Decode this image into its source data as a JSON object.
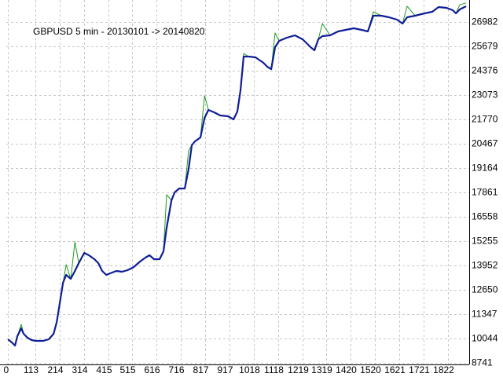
{
  "chart_data": {
    "type": "line",
    "annotation": "GBPUSD 5 min - 20130101 -> 20140820",
    "annotation_color": "#2e8b2e",
    "x": [
      0,
      16,
      29,
      39,
      55,
      65,
      81,
      98,
      114,
      146,
      169,
      189,
      202,
      215,
      228,
      241,
      260,
      277,
      293,
      316,
      335,
      358,
      374,
      390,
      407,
      423,
      449,
      472,
      495,
      521,
      547,
      569,
      586,
      605,
      628,
      644,
      657,
      677,
      690,
      709,
      732,
      748,
      761,
      774,
      797,
      814,
      830,
      853,
      879,
      911,
      934,
      950,
      963,
      976,
      996,
      1025,
      1058,
      1074,
      1090,
      1106,
      1123,
      1155,
      1188,
      1220,
      1253,
      1269,
      1285,
      1302,
      1334,
      1367,
      1399,
      1432,
      1464,
      1490,
      1513,
      1546,
      1578,
      1611,
      1634,
      1653,
      1686,
      1725,
      1757,
      1783,
      1816,
      1842,
      1855,
      1871,
      1897
    ],
    "series": [
      {
        "color": "#1c9c1c",
        "width": 1,
        "values": [
          10002,
          9834,
          9666,
          10170,
          10800,
          10296,
          10086,
          9960,
          9918,
          9918,
          10002,
          10296,
          10927,
          11977,
          13028,
          14000,
          13238,
          15214,
          14079,
          14625,
          14499,
          14289,
          14079,
          13658,
          13448,
          13532,
          13658,
          13616,
          13700,
          13868,
          14163,
          14373,
          14499,
          14289,
          14289,
          14709,
          17735,
          17441,
          17862,
          18072,
          18072,
          20100,
          20383,
          20593,
          20804,
          23030,
          22275,
          22151,
          21980,
          21938,
          21770,
          22191,
          23400,
          25300,
          25133,
          25091,
          24797,
          24586,
          24460,
          26394,
          25973,
          26141,
          26268,
          26057,
          25638,
          25469,
          26057,
          26898,
          26268,
          26478,
          26562,
          26646,
          26562,
          26478,
          27528,
          27318,
          27234,
          27108,
          26898,
          27823,
          27318,
          27444,
          27528,
          27781,
          27738,
          27612,
          27444,
          27900,
          28000
        ]
      },
      {
        "color": "#0f1e96",
        "width": 2.2,
        "values": [
          10002,
          9834,
          9666,
          10170,
          10590,
          10296,
          10086,
          9960,
          9918,
          9918,
          10002,
          10296,
          10927,
          11977,
          13028,
          13448,
          13238,
          13658,
          14079,
          14625,
          14499,
          14289,
          14079,
          13658,
          13448,
          13532,
          13658,
          13616,
          13700,
          13868,
          14163,
          14373,
          14499,
          14289,
          14289,
          14709,
          15970,
          17441,
          17862,
          18072,
          18072,
          19122,
          20383,
          20593,
          20804,
          21854,
          22275,
          22151,
          21980,
          21938,
          21770,
          22191,
          23325,
          25133,
          25133,
          25091,
          24797,
          24586,
          24460,
          25638,
          25973,
          26141,
          26268,
          26057,
          25638,
          25469,
          26057,
          26226,
          26268,
          26478,
          26562,
          26646,
          26562,
          26478,
          27318,
          27318,
          27234,
          27108,
          26898,
          27234,
          27318,
          27444,
          27528,
          27781,
          27738,
          27612,
          27444,
          27655,
          27823
        ]
      }
    ],
    "xlim": [
      -7,
      1910
    ],
    "ylim": [
      8657,
      28159
    ],
    "xticks": [
      0,
      113,
      214,
      314,
      415,
      515,
      616,
      716,
      817,
      917,
      1018,
      1118,
      1219,
      1319,
      1420,
      1520,
      1621,
      1721,
      1822
    ],
    "yticks": [
      8741,
      10044,
      11347,
      12650,
      13952,
      15255,
      16558,
      17861,
      19164,
      20467,
      21770,
      23073,
      24376,
      25679,
      26982
    ],
    "grid": true
  }
}
